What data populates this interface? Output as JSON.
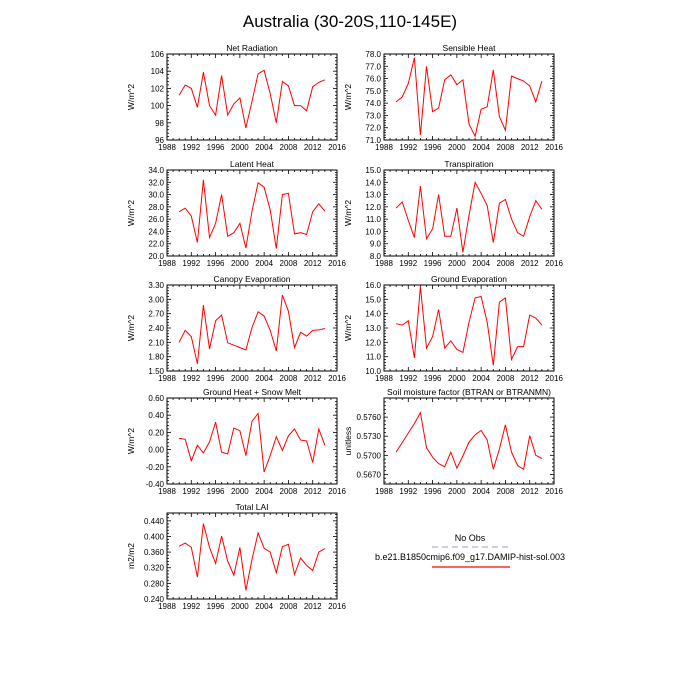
{
  "title": "Australia (30-20S,110-145E)",
  "colors": {
    "model": "#ff0000",
    "obs": "#b0b0e0"
  },
  "legend": {
    "obs_label": "No Obs",
    "model_label": "b.e21.B1850cmip6.f09_g17.DAMIP-hist-sol.003"
  },
  "chart_data": [
    {
      "type": "line",
      "title": "Net Radiation",
      "ylabel": "W/m^2",
      "xlim": [
        1988,
        2016
      ],
      "xticks": [
        1988,
        1992,
        1996,
        2000,
        2004,
        2008,
        2012,
        2016
      ],
      "xtick_labels": [
        "1988",
        "1992",
        "1996",
        "2000",
        "2004",
        "2008",
        "2012",
        "2016"
      ],
      "ylim": [
        96,
        106
      ],
      "yticks": [
        96,
        98,
        100,
        102,
        104,
        106
      ],
      "ytick_labels": [
        "96",
        "98",
        "100",
        "102",
        "104",
        "106"
      ],
      "series": [
        {
          "x": [
            1990,
            1991,
            1992,
            1993,
            1994,
            1995,
            1996,
            1997,
            1998,
            1999,
            2000,
            2001,
            2002,
            2003,
            2004,
            2005,
            2006,
            2007,
            2008,
            2009,
            2010,
            2011,
            2012,
            2013,
            2014
          ],
          "y": [
            101.2,
            102.4,
            102.0,
            99.8,
            103.9,
            100.0,
            98.9,
            103.5,
            98.9,
            100.2,
            100.9,
            97.4,
            100.5,
            103.7,
            104.1,
            101.4,
            98.0,
            102.8,
            102.3,
            100.0,
            100.0,
            99.4,
            102.2,
            102.7,
            103.0
          ]
        }
      ]
    },
    {
      "type": "line",
      "title": "Sensible Heat",
      "ylabel": "W/m^2",
      "xlim": [
        1988,
        2016
      ],
      "xticks": [
        1988,
        1992,
        1996,
        2000,
        2004,
        2008,
        2012,
        2016
      ],
      "xtick_labels": [
        "1988",
        "1992",
        "1996",
        "2000",
        "2004",
        "2008",
        "2012",
        "2016"
      ],
      "ylim": [
        71.0,
        78.0
      ],
      "yticks": [
        71.0,
        72.0,
        73.0,
        74.0,
        75.0,
        76.0,
        77.0,
        78.0
      ],
      "ytick_labels": [
        "71.0",
        "72.0",
        "73.0",
        "74.0",
        "75.0",
        "76.0",
        "77.0",
        "78.0"
      ],
      "series": [
        {
          "x": [
            1990,
            1991,
            1992,
            1993,
            1994,
            1995,
            1996,
            1997,
            1998,
            1999,
            2000,
            2001,
            2002,
            2003,
            2004,
            2005,
            2006,
            2007,
            2008,
            2009,
            2010,
            2011,
            2012,
            2013,
            2014
          ],
          "y": [
            74.1,
            74.5,
            75.6,
            77.7,
            71.4,
            77.0,
            73.3,
            73.6,
            75.9,
            76.3,
            75.5,
            75.9,
            72.3,
            71.3,
            73.5,
            73.7,
            76.7,
            72.9,
            71.8,
            76.2,
            76.0,
            75.8,
            75.4,
            74.1,
            75.8
          ]
        }
      ]
    },
    {
      "type": "line",
      "title": "Latent Heat",
      "ylabel": "W/m^2",
      "xlim": [
        1988,
        2016
      ],
      "xticks": [
        1988,
        1992,
        1996,
        2000,
        2004,
        2008,
        2012,
        2016
      ],
      "xtick_labels": [
        "1988",
        "1992",
        "1996",
        "2000",
        "2004",
        "2008",
        "2012",
        "2016"
      ],
      "ylim": [
        20.0,
        34.0
      ],
      "yticks": [
        20.0,
        22.0,
        24.0,
        26.0,
        28.0,
        30.0,
        32.0,
        34.0
      ],
      "ytick_labels": [
        "20.0",
        "22.0",
        "24.0",
        "26.0",
        "28.0",
        "30.0",
        "32.0",
        "34.0"
      ],
      "series": [
        {
          "x": [
            1990,
            1991,
            1992,
            1993,
            1994,
            1995,
            1996,
            1997,
            1998,
            1999,
            2000,
            2001,
            2002,
            2003,
            2004,
            2005,
            2006,
            2007,
            2008,
            2009,
            2010,
            2011,
            2012,
            2013,
            2014
          ],
          "y": [
            27.2,
            27.8,
            26.5,
            22.2,
            32.4,
            23.0,
            25.3,
            30.0,
            23.2,
            23.8,
            25.3,
            21.3,
            27.3,
            31.9,
            31.2,
            27.5,
            21.2,
            30.0,
            30.2,
            23.6,
            23.8,
            23.5,
            27.2,
            28.5,
            27.3
          ]
        }
      ]
    },
    {
      "type": "line",
      "title": "Transpiration",
      "ylabel": "W/m^2",
      "xlim": [
        1988,
        2016
      ],
      "xticks": [
        1988,
        1992,
        1996,
        2000,
        2004,
        2008,
        2012,
        2016
      ],
      "xtick_labels": [
        "1988",
        "1992",
        "1996",
        "2000",
        "2004",
        "2008",
        "2012",
        "2016"
      ],
      "ylim": [
        8.0,
        15.0
      ],
      "yticks": [
        8.0,
        9.0,
        10.0,
        11.0,
        12.0,
        13.0,
        14.0,
        15.0
      ],
      "ytick_labels": [
        "8.0",
        "9.0",
        "10.0",
        "11.0",
        "12.0",
        "13.0",
        "14.0",
        "15.0"
      ],
      "series": [
        {
          "x": [
            1990,
            1991,
            1992,
            1993,
            1994,
            1995,
            1996,
            1997,
            1998,
            1999,
            2000,
            2001,
            2002,
            2003,
            2004,
            2005,
            2006,
            2007,
            2008,
            2009,
            2010,
            2011,
            2012,
            2013,
            2014
          ],
          "y": [
            11.9,
            12.4,
            10.9,
            9.5,
            13.7,
            9.4,
            10.2,
            13.0,
            9.6,
            9.6,
            11.9,
            8.3,
            11.3,
            14.0,
            13.1,
            12.1,
            9.1,
            12.3,
            12.6,
            11.0,
            9.9,
            9.6,
            11.2,
            12.5,
            11.8
          ]
        }
      ]
    },
    {
      "type": "line",
      "title": "Canopy Evaporation",
      "ylabel": "W/m^2",
      "xlim": [
        1988,
        2016
      ],
      "xticks": [
        1988,
        1992,
        1996,
        2000,
        2004,
        2008,
        2012,
        2016
      ],
      "xtick_labels": [
        "1988",
        "1992",
        "1996",
        "2000",
        "2004",
        "2008",
        "2012",
        "2016"
      ],
      "ylim": [
        1.5,
        3.3
      ],
      "yticks": [
        1.5,
        1.8,
        2.1,
        2.4,
        2.7,
        3.0,
        3.3
      ],
      "ytick_labels": [
        "1.50",
        "1.80",
        "2.10",
        "2.40",
        "2.70",
        "3.00",
        "3.30"
      ],
      "series": [
        {
          "x": [
            1990,
            1991,
            1992,
            1993,
            1994,
            1995,
            1996,
            1997,
            1998,
            1999,
            2000,
            2001,
            2002,
            2003,
            2004,
            2005,
            2006,
            2007,
            2008,
            2009,
            2010,
            2011,
            2012,
            2013,
            2014
          ],
          "y": [
            2.1,
            2.35,
            2.22,
            1.65,
            2.88,
            1.96,
            2.55,
            2.67,
            2.09,
            2.04,
            1.99,
            1.94,
            2.41,
            2.74,
            2.65,
            2.35,
            1.92,
            3.09,
            2.75,
            1.99,
            2.31,
            2.23,
            2.35,
            2.36,
            2.39
          ]
        }
      ]
    },
    {
      "type": "line",
      "title": "Ground Evaporation",
      "ylabel": "W/m^2",
      "xlim": [
        1988,
        2016
      ],
      "xticks": [
        1988,
        1992,
        1996,
        2000,
        2004,
        2008,
        2012,
        2016
      ],
      "xtick_labels": [
        "1988",
        "1992",
        "1996",
        "2000",
        "2004",
        "2008",
        "2012",
        "2016"
      ],
      "ylim": [
        10.0,
        16.0
      ],
      "yticks": [
        10.0,
        11.0,
        12.0,
        13.0,
        14.0,
        15.0,
        16.0
      ],
      "ytick_labels": [
        "10.0",
        "11.0",
        "12.0",
        "13.0",
        "14.0",
        "15.0",
        "16.0"
      ],
      "series": [
        {
          "x": [
            1990,
            1991,
            1992,
            1993,
            1994,
            1995,
            1996,
            1997,
            1998,
            1999,
            2000,
            2001,
            2002,
            2003,
            2004,
            2005,
            2006,
            2007,
            2008,
            2009,
            2010,
            2011,
            2012,
            2013,
            2014
          ],
          "y": [
            13.3,
            13.2,
            13.5,
            10.9,
            15.9,
            11.6,
            12.4,
            14.3,
            11.6,
            12.1,
            11.5,
            11.3,
            13.4,
            15.1,
            15.2,
            13.4,
            10.4,
            14.8,
            15.1,
            10.8,
            11.7,
            11.7,
            13.9,
            13.7,
            13.2
          ]
        }
      ]
    },
    {
      "type": "line",
      "title": "Ground Heat + Snow Melt",
      "ylabel": "W/m^2",
      "xlim": [
        1988,
        2016
      ],
      "xticks": [
        1988,
        1992,
        1996,
        2000,
        2004,
        2008,
        2012,
        2016
      ],
      "xtick_labels": [
        "1988",
        "1992",
        "1996",
        "2000",
        "2004",
        "2008",
        "2012",
        "2016"
      ],
      "ylim": [
        -0.4,
        0.6
      ],
      "yticks": [
        -0.4,
        -0.2,
        0.0,
        0.2,
        0.4,
        0.6
      ],
      "ytick_labels": [
        "-0.40",
        "-0.20",
        "0.00",
        "0.20",
        "0.40",
        "0.60"
      ],
      "series": [
        {
          "x": [
            1990,
            1991,
            1992,
            1993,
            1994,
            1995,
            1996,
            1997,
            1998,
            1999,
            2000,
            2001,
            2002,
            2003,
            2004,
            2005,
            2006,
            2007,
            2008,
            2009,
            2010,
            2011,
            2012,
            2013,
            2014
          ],
          "y": [
            0.13,
            0.12,
            -0.13,
            0.05,
            -0.04,
            0.09,
            0.32,
            -0.03,
            -0.05,
            0.25,
            0.22,
            -0.07,
            0.33,
            0.42,
            -0.26,
            -0.07,
            0.15,
            -0.01,
            0.16,
            0.24,
            0.11,
            0.1,
            -0.15,
            0.24,
            0.05
          ]
        }
      ]
    },
    {
      "type": "line",
      "title": "Soil moisture factor (BTRAN or BTRANMN)",
      "ylabel": "unitless",
      "xlim": [
        1988,
        2016
      ],
      "xticks": [
        1988,
        1992,
        1996,
        2000,
        2004,
        2008,
        2012,
        2016
      ],
      "xtick_labels": [
        "1988",
        "1992",
        "1996",
        "2000",
        "2004",
        "2008",
        "2012",
        "2016"
      ],
      "ylim": [
        0.5655,
        0.579
      ],
      "yticks": [
        0.567,
        0.57,
        0.573,
        0.576
      ],
      "ytick_labels": [
        "0.5670",
        "0.5700",
        "0.5730",
        "0.5760"
      ],
      "series": [
        {
          "x": [
            1990,
            1991,
            1992,
            1993,
            1994,
            1995,
            1996,
            1997,
            1998,
            1999,
            2000,
            2001,
            2002,
            2003,
            2004,
            2005,
            2006,
            2007,
            2008,
            2009,
            2010,
            2011,
            2012,
            2013,
            2014
          ],
          "y": [
            0.5705,
            0.572,
            0.5735,
            0.575,
            0.5767,
            0.5712,
            0.5697,
            0.5687,
            0.5682,
            0.5705,
            0.568,
            0.5699,
            0.5721,
            0.5732,
            0.5739,
            0.5724,
            0.5678,
            0.571,
            0.5748,
            0.5705,
            0.5684,
            0.5678,
            0.5731,
            0.57,
            0.5695
          ]
        }
      ]
    },
    {
      "type": "line",
      "title": "Total LAI",
      "ylabel": "m2/m2",
      "xlim": [
        1988,
        2016
      ],
      "xticks": [
        1988,
        1992,
        1996,
        2000,
        2004,
        2008,
        2012,
        2016
      ],
      "xtick_labels": [
        "1988",
        "1992",
        "1996",
        "2000",
        "2004",
        "2008",
        "2012",
        "2016"
      ],
      "ylim": [
        0.24,
        0.46
      ],
      "yticks": [
        0.24,
        0.28,
        0.32,
        0.36,
        0.4,
        0.44
      ],
      "ytick_labels": [
        "0.240",
        "0.280",
        "0.320",
        "0.360",
        "0.400",
        "0.440"
      ],
      "series": [
        {
          "x": [
            1990,
            1991,
            1992,
            1993,
            1994,
            1995,
            1996,
            1997,
            1998,
            1999,
            2000,
            2001,
            2002,
            2003,
            2004,
            2005,
            2006,
            2007,
            2008,
            2009,
            2010,
            2011,
            2012,
            2013,
            2014
          ],
          "y": [
            0.375,
            0.383,
            0.372,
            0.296,
            0.433,
            0.372,
            0.331,
            0.401,
            0.337,
            0.301,
            0.372,
            0.262,
            0.341,
            0.409,
            0.37,
            0.36,
            0.307,
            0.374,
            0.38,
            0.303,
            0.345,
            0.326,
            0.313,
            0.36,
            0.369
          ]
        }
      ]
    }
  ]
}
